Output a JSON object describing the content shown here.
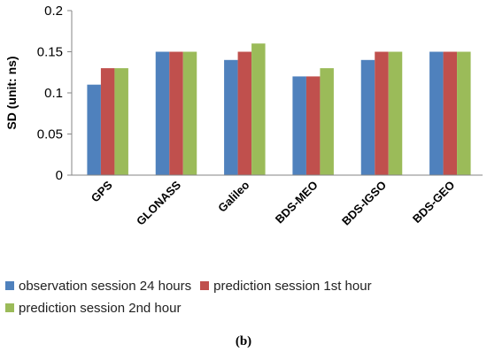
{
  "chart_data": {
    "type": "bar",
    "categories": [
      "GPS",
      "GLONASS",
      "Galileo",
      "BDS-MEO",
      "BDS-IGSO",
      "BDS-GEO"
    ],
    "series": [
      {
        "name": "observation session 24 hours",
        "values": [
          0.11,
          0.15,
          0.14,
          0.12,
          0.14,
          0.15
        ],
        "color": "#4F81BD"
      },
      {
        "name": "prediction session 1st hour",
        "values": [
          0.13,
          0.15,
          0.15,
          0.12,
          0.15,
          0.15
        ],
        "color": "#C0504D"
      },
      {
        "name": "prediction session 2nd hour",
        "values": [
          0.13,
          0.15,
          0.16,
          0.13,
          0.15,
          0.15
        ],
        "color": "#9BBB59"
      }
    ],
    "ylabel": "SD (unit: ns)",
    "ylim": [
      0,
      0.2
    ],
    "yticks": [
      "0",
      "0.05",
      "0.1",
      "0.15",
      "0.2"
    ],
    "grid": false,
    "legend_position": "bottom"
  },
  "panel_label": "(b)"
}
